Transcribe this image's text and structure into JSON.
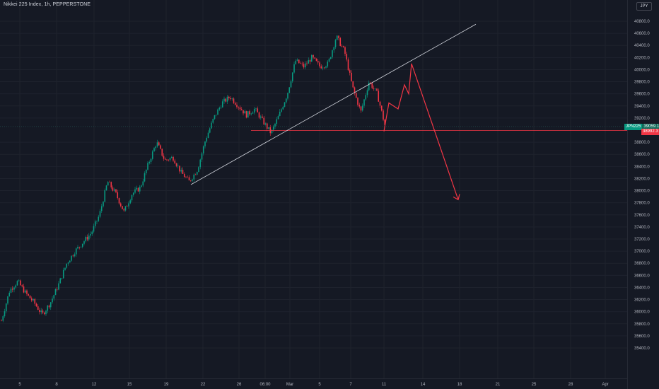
{
  "header": {
    "title": "Nikkei 225 Index, 1h, PEPPERSTONE",
    "currency": "JPY"
  },
  "price_scale": {
    "labels": [
      "40800.0",
      "40600.0",
      "40400.0",
      "40200.0",
      "40000.0",
      "39800.0",
      "39600.0",
      "39400.0",
      "39200.0",
      "38800.0",
      "38600.0",
      "38400.0",
      "38200.0",
      "38000.0",
      "37800.0",
      "37600.0",
      "37400.0",
      "37200.0",
      "37000.0",
      "36800.0",
      "36600.0",
      "36400.0",
      "36200.0",
      "36000.0",
      "35800.0",
      "35600.0",
      "35400.0"
    ],
    "symbol_tag": "JPN225",
    "last_price": "39059.1",
    "line_price": "38992.3"
  },
  "time_scale": {
    "labels": [
      "5",
      "8",
      "12",
      "15",
      "19",
      "22",
      "26",
      "06:00",
      "Mar",
      "5",
      "7",
      "11",
      "14",
      "18",
      "21",
      "25",
      "28",
      "Apr"
    ]
  },
  "colors": {
    "up": "#089981",
    "down": "#f23645",
    "trendline": "#d1d4dc",
    "projection": "#f23645",
    "grid": "#1e222d"
  },
  "chart_data": {
    "type": "candlestick",
    "symbol": "Nikkei 225 Index",
    "interval": "1h",
    "source": "PEPPERSTONE",
    "y_range": [
      35300,
      40950
    ],
    "last_price": 39059.1,
    "horizontal_level": 38992.3,
    "price_path": [
      [
        "5",
        35850
      ],
      [
        "5",
        36350
      ],
      [
        "5",
        36500
      ],
      [
        "5",
        36300
      ],
      [
        "8",
        36150
      ],
      [
        "8",
        35950
      ],
      [
        "8",
        36150
      ],
      [
        "8",
        36450
      ],
      [
        "8",
        36800
      ],
      [
        "8",
        37000
      ],
      [
        "12",
        37150
      ],
      [
        "12",
        37300
      ],
      [
        "12",
        37600
      ],
      [
        "12",
        38150
      ],
      [
        "12",
        37950
      ],
      [
        "15",
        37650
      ],
      [
        "15",
        37950
      ],
      [
        "15",
        38050
      ],
      [
        "15",
        38450
      ],
      [
        "19",
        38800
      ],
      [
        "19",
        38500
      ],
      [
        "19",
        38550
      ],
      [
        "19",
        38300
      ],
      [
        "22",
        38150
      ],
      [
        "22",
        38350
      ],
      [
        "22",
        38850
      ],
      [
        "22",
        39200
      ],
      [
        "22",
        39450
      ],
      [
        "26",
        39550
      ],
      [
        "26",
        39400
      ],
      [
        "26",
        39250
      ],
      [
        "26",
        39350
      ],
      [
        "06:00",
        39150
      ],
      [
        "06:00",
        38950
      ],
      [
        "Mar",
        39250
      ],
      [
        "Mar",
        39600
      ],
      [
        "Mar",
        40150
      ],
      [
        "Mar",
        40050
      ],
      [
        "5",
        40200
      ],
      [
        "5",
        40050
      ],
      [
        "5",
        40100
      ],
      [
        "7",
        40550
      ],
      [
        "7",
        40300
      ],
      [
        "7",
        39700
      ],
      [
        "7",
        39300
      ],
      [
        "7",
        39800
      ],
      [
        "11",
        39600
      ],
      [
        "11",
        39050
      ]
    ],
    "trendline": [
      [
        "22",
        38100
      ],
      [
        "14",
        40750
      ]
    ],
    "projection_path": [
      [
        "11",
        38980
      ],
      [
        "11",
        39450
      ],
      [
        "11",
        39350
      ],
      [
        "14",
        39750
      ],
      [
        "14",
        39600
      ],
      [
        "14",
        40100
      ],
      [
        "18",
        37850
      ]
    ]
  }
}
